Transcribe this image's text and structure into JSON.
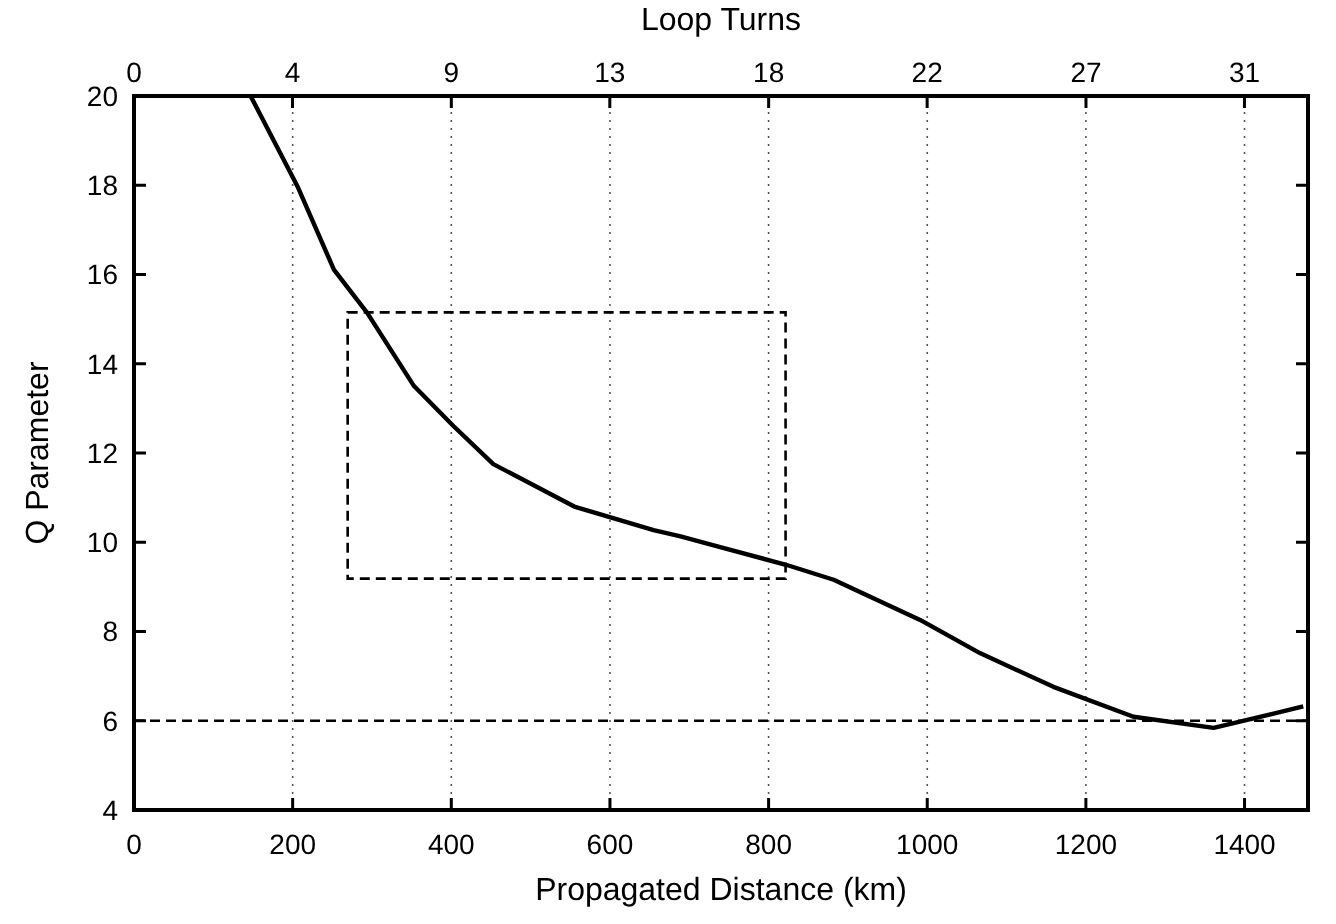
{
  "chart_data": {
    "type": "line",
    "xlabel": "Propagated Distance (km)",
    "x2label": "Loop Turns",
    "ylabel": "Q Parameter",
    "x": [
      147,
      206,
      252,
      294,
      353,
      403,
      453,
      555,
      655,
      689,
      739,
      823,
      882,
      991,
      1067,
      1159,
      1260,
      1361,
      1474
    ],
    "series": [
      {
        "color": "#000000",
        "values": [
          20,
          17.98,
          16.11,
          15.14,
          13.5,
          12.6,
          11.75,
          10.8,
          10.27,
          10.13,
          9.89,
          9.49,
          9.16,
          8.26,
          7.51,
          6.76,
          6.09,
          5.84,
          6.32
        ]
      }
    ],
    "xlim": [
      0,
      1480
    ],
    "xticks": [
      0,
      200,
      400,
      600,
      800,
      1000,
      1200,
      1400
    ],
    "x2lim": [
      0,
      32.89
    ],
    "x2ticks": [
      0,
      {
        "value": 4.44,
        "label": "4"
      },
      {
        "value": 8.89,
        "label": "9"
      },
      {
        "value": 13.33,
        "label": "13"
      },
      {
        "value": 17.78,
        "label": "18"
      },
      {
        "value": 22.22,
        "label": "22"
      },
      {
        "value": 26.67,
        "label": "27"
      },
      {
        "value": 31.11,
        "label": "31"
      }
    ],
    "ylim": [
      4,
      20
    ],
    "yticks": [
      4,
      6,
      8,
      10,
      12,
      14,
      16,
      18,
      20
    ],
    "grid": "x",
    "marker": "none",
    "line_style": "solid",
    "ref_lines": [
      {
        "axis": "y",
        "value": 6,
        "line_style": "dashed"
      }
    ]
  }
}
